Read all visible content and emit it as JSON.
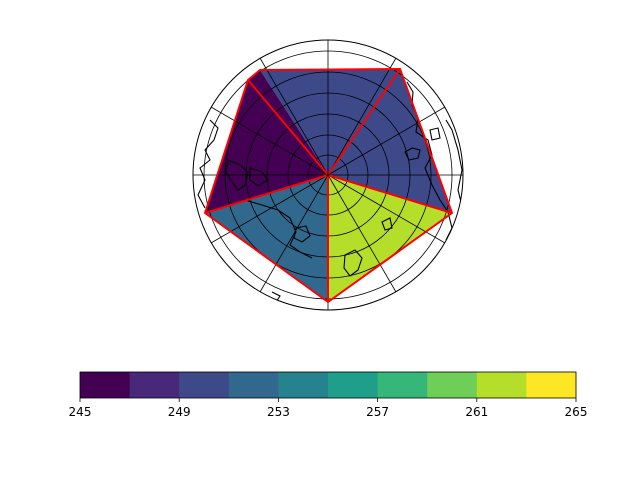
{
  "chart_data": {
    "type": "polar-map",
    "projection": "north-polar-stereographic",
    "title": "",
    "gridlines": true,
    "coastlines": true,
    "center_point": "North Pole",
    "patches": [
      {
        "name": "",
        "value": 249.5,
        "outline": "#ff0000"
      },
      {
        "name": "",
        "value": 249.8,
        "outline": "#ff0000"
      },
      {
        "name": "",
        "value": 245.8,
        "outline": "#ff0000"
      },
      {
        "name": "",
        "value": 252.5,
        "outline": "#ff0000"
      },
      {
        "name": "",
        "value": 262.1,
        "outline": "#ff0000"
      }
    ],
    "colorbar": {
      "orientation": "horizontal",
      "vmin": 245,
      "vmax": 265,
      "bins": 10,
      "tick_labels": [
        "245",
        "249",
        "253",
        "257",
        "261",
        "265"
      ],
      "tick_values": [
        245,
        249,
        253,
        257,
        261,
        265
      ],
      "colormap": [
        "#440154",
        "#482878",
        "#3e4989",
        "#31688e",
        "#26828e",
        "#1f9e89",
        "#35b779",
        "#6ece58",
        "#b5de2b",
        "#fde725"
      ]
    },
    "colors": {
      "outline": "#ff0000",
      "coastline": "#000000",
      "grid": "#000000",
      "background": "#ffffff"
    }
  }
}
